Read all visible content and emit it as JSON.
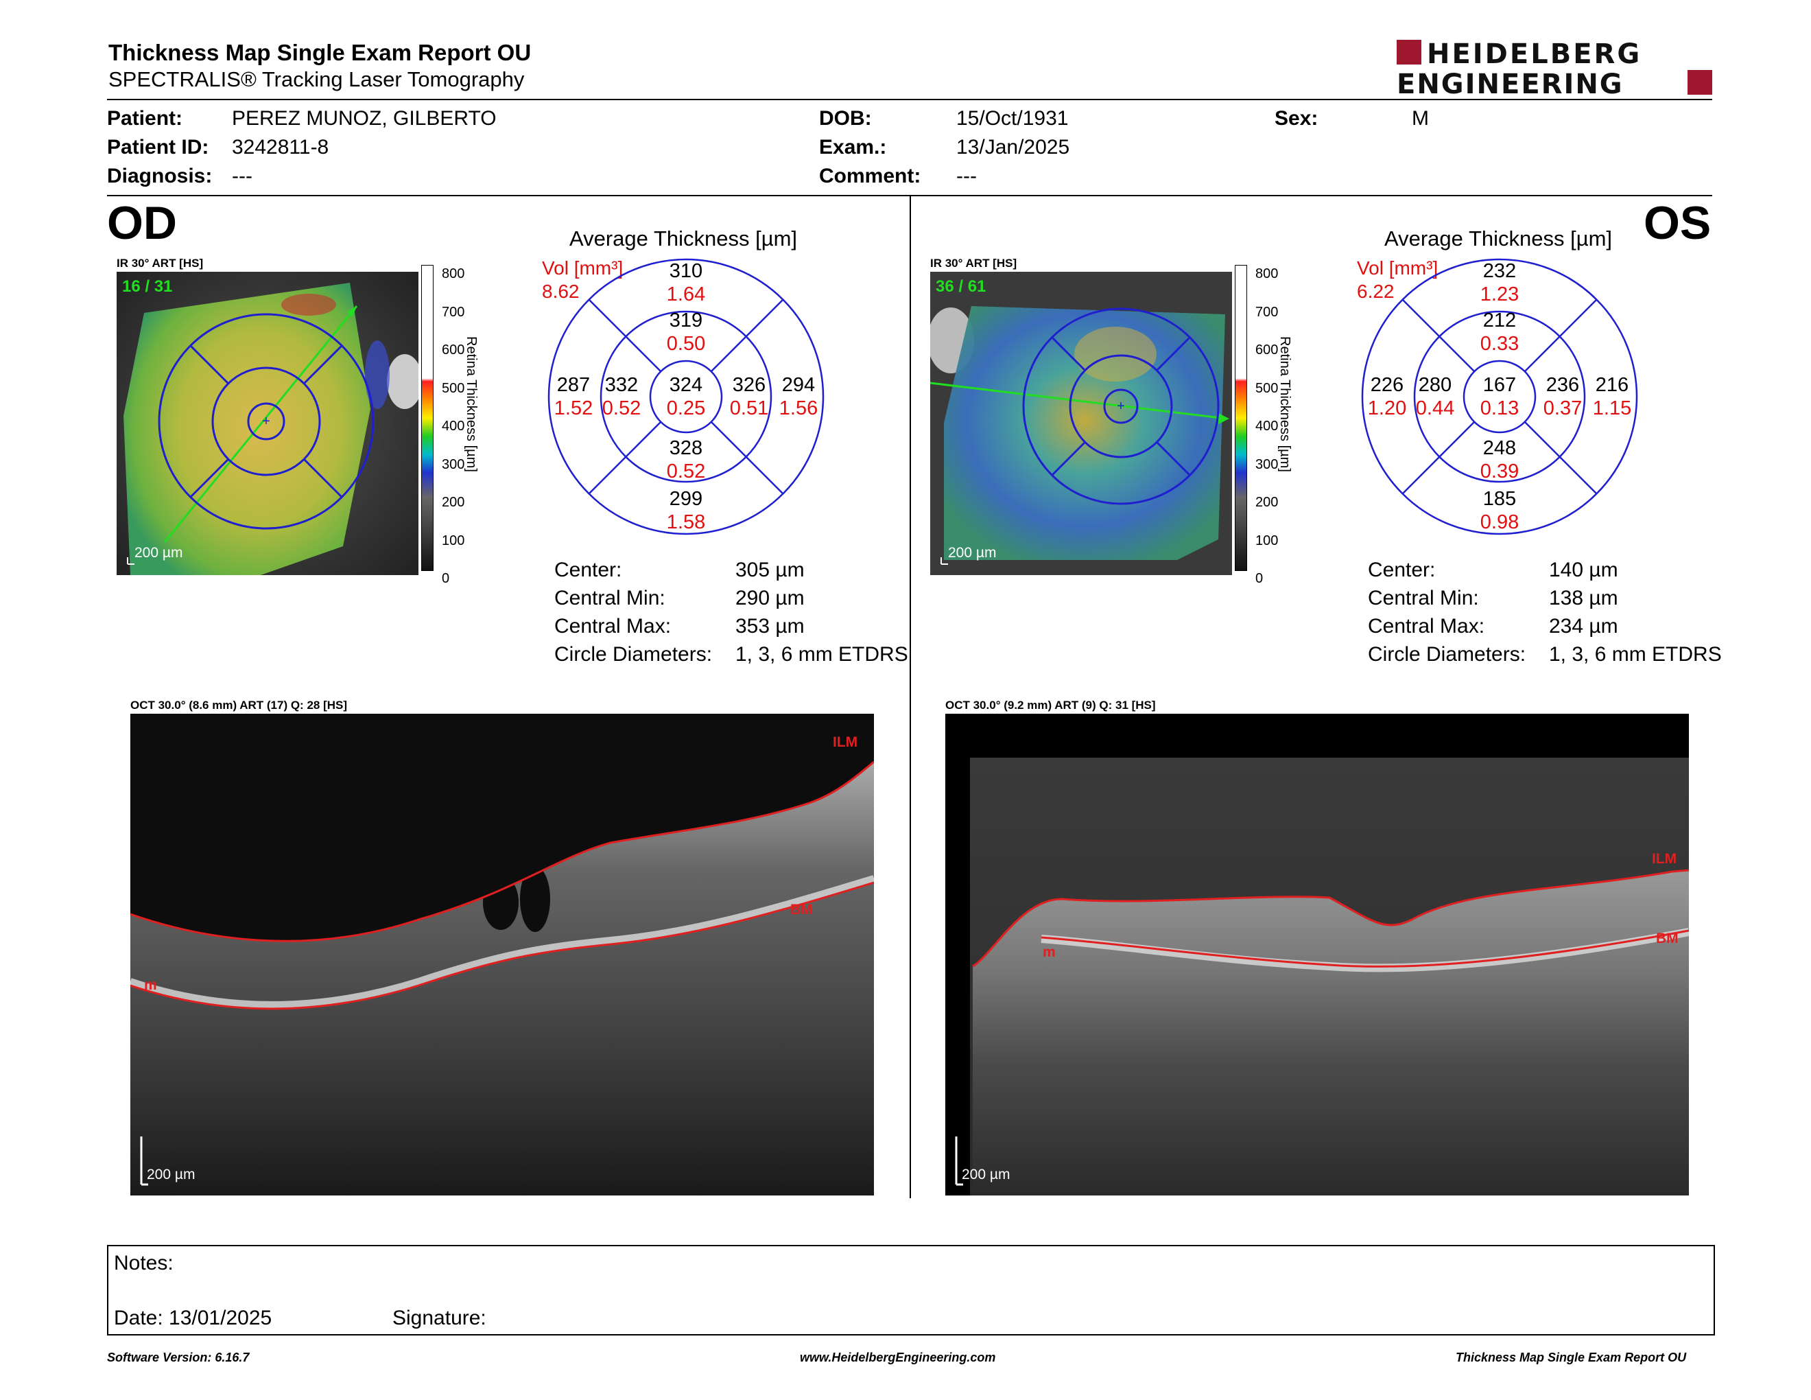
{
  "header": {
    "title": "Thickness Map Single Exam Report OU",
    "subtitle": "SPECTRALIS® Tracking Laser Tomography",
    "logo_line1": "HEIDELBERG",
    "logo_line2": "ENGINEERING"
  },
  "patient": {
    "patient_label": "Patient:",
    "patient_value": "PEREZ MUNOZ, GILBERTO",
    "id_label": "Patient ID:",
    "id_value": "3242811-8",
    "diagnosis_label": "Diagnosis:",
    "diagnosis_value": "---",
    "dob_label": "DOB:",
    "dob_value": "15/Oct/1931",
    "exam_label": "Exam.:",
    "exam_value": "13/Jan/2025",
    "comment_label": "Comment:",
    "comment_value": "---",
    "sex_label": "Sex:",
    "sex_value": "M"
  },
  "od": {
    "eye": "OD",
    "ir_label": "IR 30° ART [HS]",
    "ir_frames": "16 / 31",
    "scale": "200 µm",
    "avg_title": "Average Thickness [µm]",
    "vol_label": "Vol [mm³]",
    "vol_total": "8.62",
    "sectors": {
      "outer_sup": {
        "t": "310",
        "v": "1.64"
      },
      "inner_sup": {
        "t": "319",
        "v": "0.50"
      },
      "outer_temp": {
        "t": "287",
        "v": "1.52"
      },
      "inner_temp": {
        "t": "332",
        "v": "0.52"
      },
      "center": {
        "t": "324",
        "v": "0.25"
      },
      "inner_nas": {
        "t": "326",
        "v": "0.51"
      },
      "outer_nas": {
        "t": "294",
        "v": "1.56"
      },
      "inner_inf": {
        "t": "328",
        "v": "0.52"
      },
      "outer_inf": {
        "t": "299",
        "v": "1.58"
      }
    },
    "stats": [
      {
        "label": "Center:",
        "value": "305 µm"
      },
      {
        "label": "Central Min:",
        "value": "290 µm"
      },
      {
        "label": "Central Max:",
        "value": "353 µm"
      },
      {
        "label": "Circle Diameters:",
        "value": "1, 3, 6 mm ETDRS"
      }
    ],
    "oct_label": "OCT 30.0° (8.6 mm) ART (17) Q: 28 [HS]",
    "oct_scale": "200 µm",
    "ilm": "ILM",
    "bm": "BM",
    "m": "m"
  },
  "os": {
    "eye": "OS",
    "ir_label": "IR 30° ART [HS]",
    "ir_frames": "36 / 61",
    "scale": "200 µm",
    "avg_title": "Average Thickness [µm]",
    "vol_label": "Vol [mm³]",
    "vol_total": "6.22",
    "sectors": {
      "outer_sup": {
        "t": "232",
        "v": "1.23"
      },
      "inner_sup": {
        "t": "212",
        "v": "0.33"
      },
      "outer_temp": {
        "t": "226",
        "v": "1.20"
      },
      "inner_temp": {
        "t": "280",
        "v": "0.44"
      },
      "center": {
        "t": "167",
        "v": "0.13"
      },
      "inner_nas": {
        "t": "236",
        "v": "0.37"
      },
      "outer_nas": {
        "t": "216",
        "v": "1.15"
      },
      "inner_inf": {
        "t": "248",
        "v": "0.39"
      },
      "outer_inf": {
        "t": "185",
        "v": "0.98"
      }
    },
    "stats": [
      {
        "label": "Center:",
        "value": "140 µm"
      },
      {
        "label": "Central Min:",
        "value": "138 µm"
      },
      {
        "label": "Central Max:",
        "value": "234 µm"
      },
      {
        "label": "Circle Diameters:",
        "value": "1, 3, 6 mm ETDRS"
      }
    ],
    "oct_label": "OCT 30.0° (9.2 mm) ART (9) Q: 31 [HS]",
    "oct_scale": "200 µm",
    "ilm": "ILM",
    "bm": "BM",
    "m": "m"
  },
  "colorbar": {
    "ticks": [
      "800",
      "700",
      "600",
      "500",
      "400",
      "300",
      "200",
      "100",
      "0"
    ],
    "title": "Retina  Thickness [µm]"
  },
  "notes": {
    "notes_label": "Notes:",
    "date_label": "Date: 13/01/2025",
    "signature_label": "Signature:"
  },
  "footer": {
    "software": "Software Version: 6.16.7",
    "website": "www.HeidelbergEngineering.com",
    "report": "Thickness Map Single Exam Report OU"
  },
  "colors": {
    "brand": "#a01830",
    "grid_blue": "#1f1fd0",
    "volume_red": "#e01010",
    "green_label": "#22dd22"
  }
}
